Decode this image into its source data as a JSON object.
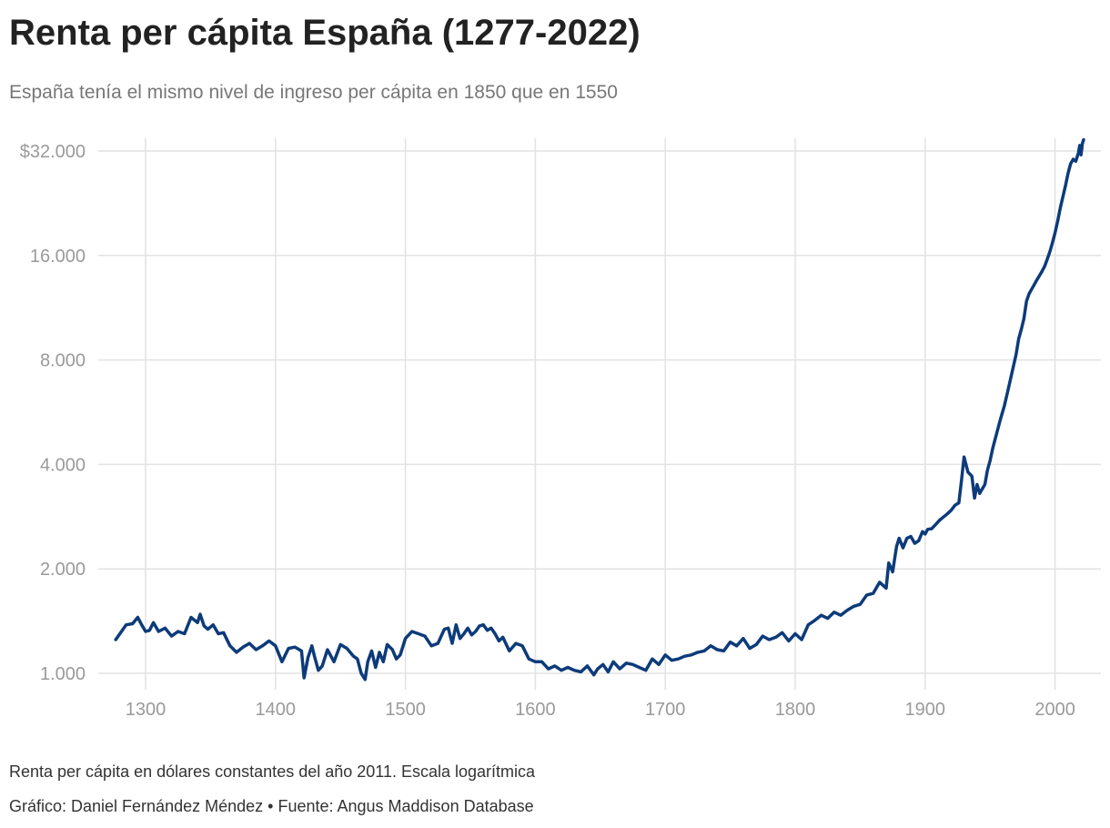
{
  "chart_data": {
    "type": "line",
    "title": "Renta per cápita España (1277-2022)",
    "subtitle": "España tenía el mismo nivel de ingreso per cápita en 1850 que en 1550",
    "y_scale": "log",
    "ylim": [
      1000,
      32000
    ],
    "xlim": [
      1277,
      2022
    ],
    "x_ticks": [
      1300,
      1400,
      1500,
      1600,
      1700,
      1800,
      1900,
      2000
    ],
    "x_tick_labels": [
      "1300",
      "1400",
      "1500",
      "1600",
      "1700",
      "1800",
      "1900",
      "2000"
    ],
    "y_ticks": [
      1000,
      2000,
      4000,
      8000,
      16000,
      32000
    ],
    "y_tick_labels": [
      "1.000",
      "2.000",
      "4.000",
      "8.000",
      "16.000",
      "$32.000"
    ],
    "grid": true,
    "color": "#0d3b7a",
    "series": [
      {
        "x": [
          1277,
          1285,
          1290,
          1294,
          1297,
          1300,
          1303,
          1306,
          1310,
          1315,
          1320,
          1325,
          1330,
          1335,
          1340,
          1342,
          1345,
          1348,
          1352,
          1356,
          1360,
          1365,
          1370,
          1375,
          1380,
          1385,
          1390,
          1395,
          1400,
          1405,
          1410,
          1415,
          1420,
          1422,
          1425,
          1428,
          1430,
          1433,
          1436,
          1440,
          1445,
          1450,
          1455,
          1460,
          1463,
          1466,
          1469,
          1471,
          1474,
          1477,
          1480,
          1483,
          1486,
          1490,
          1493,
          1496,
          1500,
          1505,
          1510,
          1515,
          1520,
          1525,
          1530,
          1533,
          1536,
          1539,
          1542,
          1545,
          1548,
          1551,
          1554,
          1557,
          1560,
          1563,
          1566,
          1569,
          1572,
          1575,
          1580,
          1585,
          1590,
          1595,
          1600,
          1605,
          1610,
          1615,
          1620,
          1625,
          1630,
          1635,
          1640,
          1645,
          1648,
          1652,
          1656,
          1660,
          1665,
          1670,
          1675,
          1680,
          1685,
          1690,
          1695,
          1700,
          1705,
          1710,
          1715,
          1720,
          1725,
          1730,
          1735,
          1740,
          1745,
          1750,
          1755,
          1760,
          1765,
          1770,
          1775,
          1780,
          1785,
          1790,
          1795,
          1800,
          1805,
          1810,
          1815,
          1820,
          1825,
          1830,
          1835,
          1840,
          1845,
          1850,
          1855,
          1860,
          1865,
          1870,
          1872,
          1875,
          1878,
          1880,
          1883,
          1886,
          1889,
          1892,
          1895,
          1898,
          1900,
          1902,
          1905,
          1908,
          1911,
          1914,
          1917,
          1920,
          1923,
          1926,
          1928,
          1930,
          1933,
          1936,
          1938,
          1940,
          1942,
          1944,
          1946,
          1948,
          1950,
          1952,
          1955,
          1958,
          1961,
          1964,
          1967,
          1970,
          1972,
          1974,
          1976,
          1978,
          1980,
          1982,
          1984,
          1986,
          1988,
          1990,
          1992,
          1994,
          1996,
          1998,
          2000,
          2002,
          2004,
          2006,
          2008,
          2010,
          2012,
          2014,
          2016,
          2018,
          2019,
          2020,
          2021,
          2022
        ],
        "y": [
          1250,
          1380,
          1390,
          1450,
          1380,
          1320,
          1330,
          1400,
          1320,
          1350,
          1280,
          1320,
          1300,
          1450,
          1400,
          1480,
          1370,
          1340,
          1380,
          1300,
          1310,
          1200,
          1150,
          1190,
          1220,
          1170,
          1200,
          1240,
          1200,
          1080,
          1180,
          1190,
          1160,
          970,
          1110,
          1200,
          1120,
          1020,
          1050,
          1170,
          1080,
          1210,
          1180,
          1120,
          1100,
          1000,
          960,
          1080,
          1160,
          1040,
          1150,
          1080,
          1210,
          1170,
          1100,
          1130,
          1260,
          1320,
          1300,
          1280,
          1200,
          1220,
          1340,
          1350,
          1220,
          1380,
          1260,
          1300,
          1350,
          1290,
          1320,
          1370,
          1380,
          1330,
          1350,
          1300,
          1240,
          1270,
          1160,
          1220,
          1200,
          1100,
          1080,
          1080,
          1030,
          1050,
          1020,
          1040,
          1020,
          1010,
          1050,
          990,
          1030,
          1060,
          1010,
          1080,
          1030,
          1070,
          1060,
          1040,
          1020,
          1100,
          1060,
          1130,
          1090,
          1100,
          1120,
          1130,
          1150,
          1160,
          1200,
          1170,
          1160,
          1230,
          1200,
          1260,
          1180,
          1210,
          1280,
          1250,
          1270,
          1310,
          1240,
          1300,
          1250,
          1380,
          1420,
          1470,
          1440,
          1500,
          1470,
          1520,
          1560,
          1580,
          1680,
          1700,
          1830,
          1760,
          2080,
          1960,
          2320,
          2450,
          2300,
          2450,
          2480,
          2370,
          2410,
          2560,
          2520,
          2600,
          2610,
          2680,
          2760,
          2820,
          2880,
          2950,
          3050,
          3100,
          3600,
          4200,
          3800,
          3700,
          3200,
          3500,
          3300,
          3400,
          3500,
          3850,
          4100,
          4450,
          4900,
          5400,
          5900,
          6600,
          7400,
          8300,
          9200,
          9800,
          10500,
          11800,
          12400,
          12800,
          13200,
          13600,
          14000,
          14400,
          14900,
          15600,
          16400,
          17400,
          18600,
          20100,
          21900,
          23600,
          25400,
          27600,
          29400,
          30300,
          29900,
          31600,
          33200,
          31200,
          33600,
          34500
        ]
      }
    ]
  },
  "footer": {
    "note": "Renta per cápita en dólares constantes del año 2011. Escala logarítmica",
    "credit": "Gráfico: Daniel Fernández Méndez • Fuente: Angus Maddison Database"
  }
}
